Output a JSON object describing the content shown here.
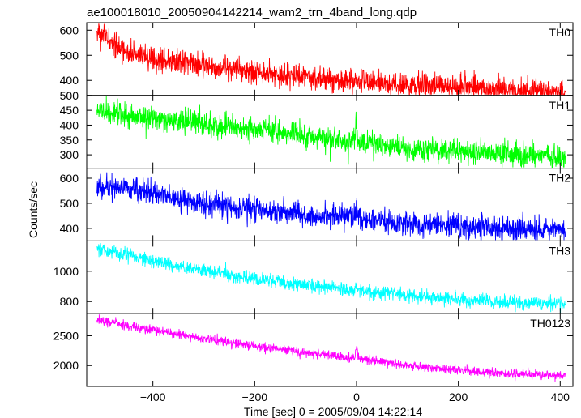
{
  "chart_data": {
    "type": "line",
    "title": "ae100018010_20050904142214_wam2_trn_4band_long.qdp",
    "xlabel": "Time [sec] 0 = 2005/09/04 14:22:14",
    "ylabel": "Counts/sec",
    "xlim": [
      -530,
      425
    ],
    "xticks": [
      -400,
      -200,
      0,
      200,
      400
    ],
    "xtick_labels": [
      "−400",
      "−200",
      "0",
      "200",
      "400"
    ],
    "grid": false,
    "panels": [
      {
        "name": "TH0",
        "color": "#ff0000",
        "ylim": [
          340,
          630
        ],
        "yticks": [
          400,
          500,
          600
        ],
        "ytick_labels": [
          "400",
          "500",
          "600"
        ],
        "trend": [
          [
            -510,
            590
          ],
          [
            -490,
            570
          ],
          [
            -470,
            525
          ],
          [
            -400,
            485
          ],
          [
            -300,
            462
          ],
          [
            -200,
            432
          ],
          [
            -100,
            410
          ],
          [
            0,
            395
          ],
          [
            100,
            382
          ],
          [
            200,
            372
          ],
          [
            300,
            362
          ],
          [
            410,
            352
          ]
        ],
        "noise": 24,
        "spikes": [
          [
            -505,
            20
          ],
          [
            -496,
            30
          ],
          [
            0,
            15
          ]
        ]
      },
      {
        "name": "TH1",
        "color": "#00ff00",
        "ylim": [
          255,
          500
        ],
        "yticks": [
          300,
          350,
          400,
          450,
          500
        ],
        "ytick_labels": [
          "300",
          "350",
          "400",
          "450",
          "500"
        ],
        "trend": [
          [
            -510,
            455
          ],
          [
            -470,
            438
          ],
          [
            -400,
            425
          ],
          [
            -300,
            402
          ],
          [
            -200,
            385
          ],
          [
            -100,
            362
          ],
          [
            -10,
            345
          ],
          [
            100,
            320
          ],
          [
            200,
            312
          ],
          [
            300,
            302
          ],
          [
            410,
            297
          ]
        ],
        "noise": 20,
        "spikes": [
          [
            0,
            55
          ],
          [
            -160,
            20
          ]
        ]
      },
      {
        "name": "TH2",
        "color": "#0000ff",
        "ylim": [
          350,
          640
        ],
        "yticks": [
          400,
          500,
          600
        ],
        "ytick_labels": [
          "400",
          "500",
          "600"
        ],
        "trend": [
          [
            -510,
            570
          ],
          [
            -450,
            555
          ],
          [
            -400,
            540
          ],
          [
            -300,
            500
          ],
          [
            -200,
            475
          ],
          [
            -100,
            455
          ],
          [
            -10,
            445
          ],
          [
            100,
            420
          ],
          [
            200,
            408
          ],
          [
            300,
            400
          ],
          [
            410,
            392
          ]
        ],
        "noise": 24,
        "spikes": [
          [
            0,
            60
          ]
        ]
      },
      {
        "name": "TH3",
        "color": "#00ffff",
        "ylim": [
          720,
          1200
        ],
        "yticks": [
          800,
          1000
        ],
        "ytick_labels": [
          "800",
          "1000"
        ],
        "trend": [
          [
            -510,
            1150
          ],
          [
            -400,
            1070
          ],
          [
            -300,
            1000
          ],
          [
            -200,
            950
          ],
          [
            -100,
            910
          ],
          [
            -10,
            880
          ],
          [
            100,
            840
          ],
          [
            200,
            810
          ],
          [
            300,
            795
          ],
          [
            410,
            785
          ]
        ],
        "noise": 22,
        "spikes": [
          [
            0,
            40
          ]
        ]
      },
      {
        "name": "TH0123",
        "color": "#ff00ff",
        "ylim": [
          1650,
          2870
        ],
        "yticks": [
          2000,
          2500
        ],
        "ytick_labels": [
          "2000",
          "2500"
        ],
        "trend": [
          [
            -510,
            2760
          ],
          [
            -400,
            2600
          ],
          [
            -300,
            2450
          ],
          [
            -200,
            2330
          ],
          [
            -100,
            2220
          ],
          [
            -10,
            2130
          ],
          [
            100,
            2000
          ],
          [
            200,
            1920
          ],
          [
            300,
            1865
          ],
          [
            410,
            1830
          ]
        ],
        "noise": 38,
        "spikes": [
          [
            0,
            180
          ]
        ]
      }
    ]
  }
}
